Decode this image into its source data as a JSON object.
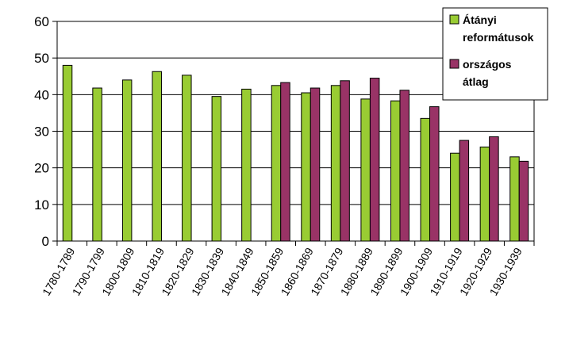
{
  "chart_data": {
    "type": "bar",
    "categories": [
      "1780-1789",
      "1790-1799",
      "1800-1809",
      "1810-1819",
      "1820-1829",
      "1830-1839",
      "1840-1849",
      "1850-1859",
      "1860-1869",
      "1870-1879",
      "1880-1889",
      "1890-1899",
      "1900-1909",
      "1910-1919",
      "1920-1929",
      "1930-1939"
    ],
    "series": [
      {
        "name": "Átányi reformátusok",
        "color": "#99cc33",
        "values": [
          48,
          41.8,
          44,
          46.3,
          45.3,
          39.5,
          41.5,
          42.5,
          40.5,
          42.5,
          38.8,
          38.3,
          33.5,
          24,
          25.7,
          23
        ]
      },
      {
        "name": "országos átlag",
        "color": "#993366",
        "values": [
          null,
          null,
          null,
          null,
          null,
          null,
          null,
          43.3,
          41.8,
          43.8,
          44.5,
          41.2,
          36.7,
          27.5,
          28.5,
          21.8
        ]
      }
    ],
    "legend_lines": [
      [
        "Átányi",
        "reformátusok"
      ],
      [
        "országos",
        "átlag"
      ]
    ],
    "ylim": [
      0,
      60
    ],
    "yticks": [
      "0",
      "10",
      "20",
      "30",
      "40",
      "50",
      "60"
    ],
    "grid": true,
    "legend_position": "top-right",
    "xlabel": "",
    "ylabel": ""
  }
}
